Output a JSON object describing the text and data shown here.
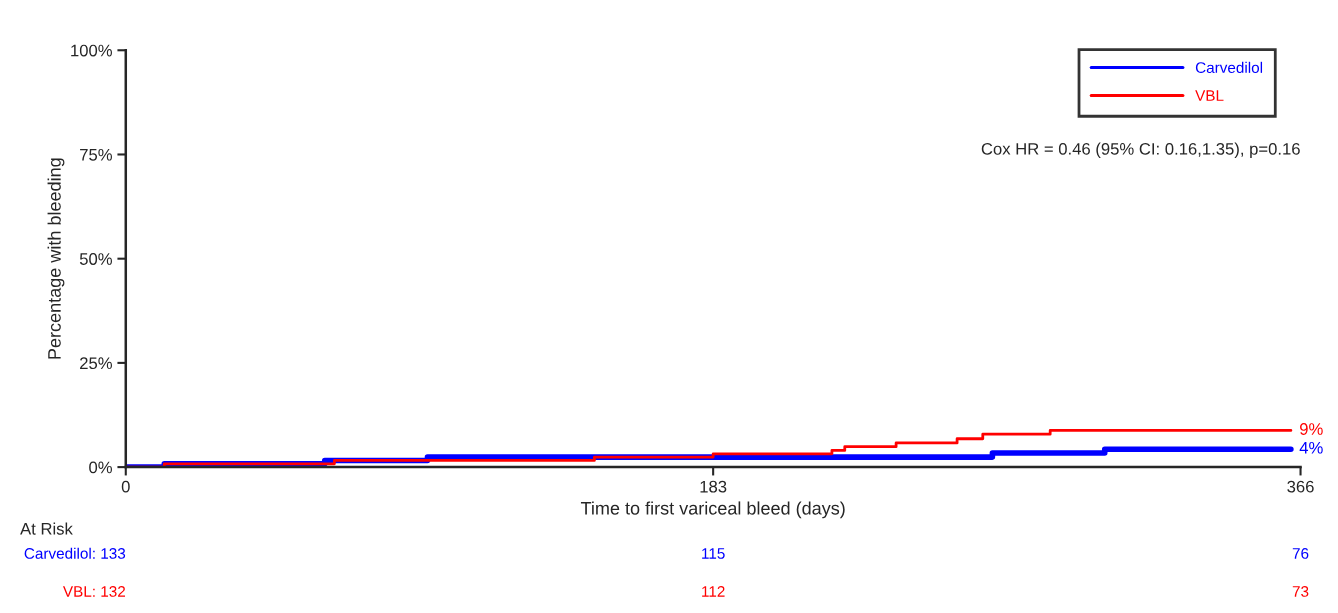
{
  "chart_data": {
    "type": "step",
    "xlabel": "Time to first variceal bleed (days)",
    "ylabel": "Percentage with bleeding",
    "xlim": [
      0,
      366
    ],
    "xticks": [
      0,
      183,
      366
    ],
    "ylim": [
      0,
      100
    ],
    "yticks": [
      {
        "value": 0,
        "label": "0%"
      },
      {
        "value": 25,
        "label": "25%"
      },
      {
        "value": 50,
        "label": "50%"
      },
      {
        "value": 75,
        "label": "75%"
      },
      {
        "value": 100,
        "label": "100%"
      }
    ],
    "grid": false,
    "legend": "top right",
    "series": [
      {
        "name": "Carvedilol",
        "color": "#0000ff",
        "x": [
          0,
          12,
          62,
          94,
          270,
          305,
          363
        ],
        "values": [
          0,
          0.8,
          1.6,
          2.4,
          3.4,
          4.3,
          4.3
        ]
      },
      {
        "name": "VBL",
        "color": "#ff0000",
        "x": [
          0,
          12,
          65,
          146,
          183,
          220,
          224,
          240,
          259,
          267,
          288,
          363
        ],
        "values": [
          0,
          0.8,
          1.6,
          2.4,
          3.2,
          4.0,
          4.9,
          5.8,
          6.8,
          7.9,
          8.8,
          8.8
        ]
      }
    ],
    "annotations": [
      {
        "text": "4%",
        "x": 363,
        "y": 4.3
      },
      {
        "text": "9%",
        "x": 363,
        "y": 8.8
      },
      "Cox HR = 0.46 (95% CI: 0.16,1.35), p=0.16",
      "At Risk",
      "Carvedilol: 133",
      "115",
      "76",
      "VBL: 132",
      "112",
      "73"
    ]
  }
}
